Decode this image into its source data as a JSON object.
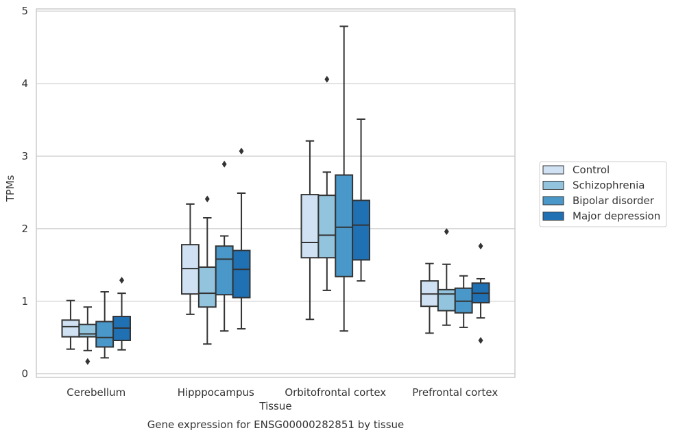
{
  "chart_data": {
    "type": "boxplot",
    "title": "Gene expression for ENSG00000282851 by tissue",
    "xlabel": "Tissue",
    "ylabel": "TPMs",
    "ylim": [
      -0.05,
      5.03
    ],
    "yticks": [
      0,
      1,
      2,
      3,
      4,
      5
    ],
    "grid": "horizontal",
    "legend_position": "right",
    "categories": [
      "Cerebellum",
      "Hipppocampus",
      "Orbitofrontal cortex",
      "Prefrontal cortex"
    ],
    "series": [
      {
        "name": "Control",
        "color": "#cfe1f2",
        "boxes": [
          {
            "whisker_low": 0.34,
            "q1": 0.51,
            "median": 0.65,
            "q3": 0.74,
            "whisker_high": 1.01,
            "outliers": []
          },
          {
            "whisker_low": 0.82,
            "q1": 1.1,
            "median": 1.45,
            "q3": 1.78,
            "whisker_high": 2.34,
            "outliers": []
          },
          {
            "whisker_low": 0.75,
            "q1": 1.6,
            "median": 1.81,
            "q3": 2.47,
            "whisker_high": 3.21,
            "outliers": []
          },
          {
            "whisker_low": 0.56,
            "q1": 0.93,
            "median": 1.1,
            "q3": 1.28,
            "whisker_high": 1.52,
            "outliers": []
          }
        ]
      },
      {
        "name": "Schizophrenia",
        "color": "#93c4de",
        "boxes": [
          {
            "whisker_low": 0.32,
            "q1": 0.51,
            "median": 0.55,
            "q3": 0.68,
            "whisker_high": 0.92,
            "outliers": [
              0.17
            ]
          },
          {
            "whisker_low": 0.41,
            "q1": 0.92,
            "median": 1.11,
            "q3": 1.47,
            "whisker_high": 2.15,
            "outliers": [
              2.41
            ]
          },
          {
            "whisker_low": 1.15,
            "q1": 1.6,
            "median": 1.91,
            "q3": 2.46,
            "whisker_high": 2.78,
            "outliers": [
              4.06
            ]
          },
          {
            "whisker_low": 0.67,
            "q1": 0.87,
            "median": 1.1,
            "q3": 1.16,
            "whisker_high": 1.51,
            "outliers": [
              1.96
            ]
          }
        ]
      },
      {
        "name": "Bipolar disorder",
        "color": "#4a98c9",
        "boxes": [
          {
            "whisker_low": 0.22,
            "q1": 0.37,
            "median": 0.5,
            "q3": 0.72,
            "whisker_high": 1.13,
            "outliers": []
          },
          {
            "whisker_low": 0.59,
            "q1": 1.09,
            "median": 1.58,
            "q3": 1.76,
            "whisker_high": 1.9,
            "outliers": [
              2.89
            ]
          },
          {
            "whisker_low": 0.59,
            "q1": 1.34,
            "median": 2.02,
            "q3": 2.74,
            "whisker_high": 4.79,
            "outliers": []
          },
          {
            "whisker_low": 0.64,
            "q1": 0.84,
            "median": 1.0,
            "q3": 1.18,
            "whisker_high": 1.35,
            "outliers": []
          }
        ]
      },
      {
        "name": "Major depression",
        "color": "#2070b4",
        "boxes": [
          {
            "whisker_low": 0.33,
            "q1": 0.46,
            "median": 0.63,
            "q3": 0.79,
            "whisker_high": 1.11,
            "outliers": [
              1.29
            ]
          },
          {
            "whisker_low": 0.62,
            "q1": 1.05,
            "median": 1.44,
            "q3": 1.7,
            "whisker_high": 2.49,
            "outliers": [
              3.07
            ]
          },
          {
            "whisker_low": 1.28,
            "q1": 1.57,
            "median": 2.05,
            "q3": 2.39,
            "whisker_high": 3.51,
            "outliers": []
          },
          {
            "whisker_low": 0.77,
            "q1": 0.98,
            "median": 1.11,
            "q3": 1.25,
            "whisker_high": 1.31,
            "outliers": [
              1.76,
              0.46
            ]
          }
        ]
      }
    ]
  }
}
